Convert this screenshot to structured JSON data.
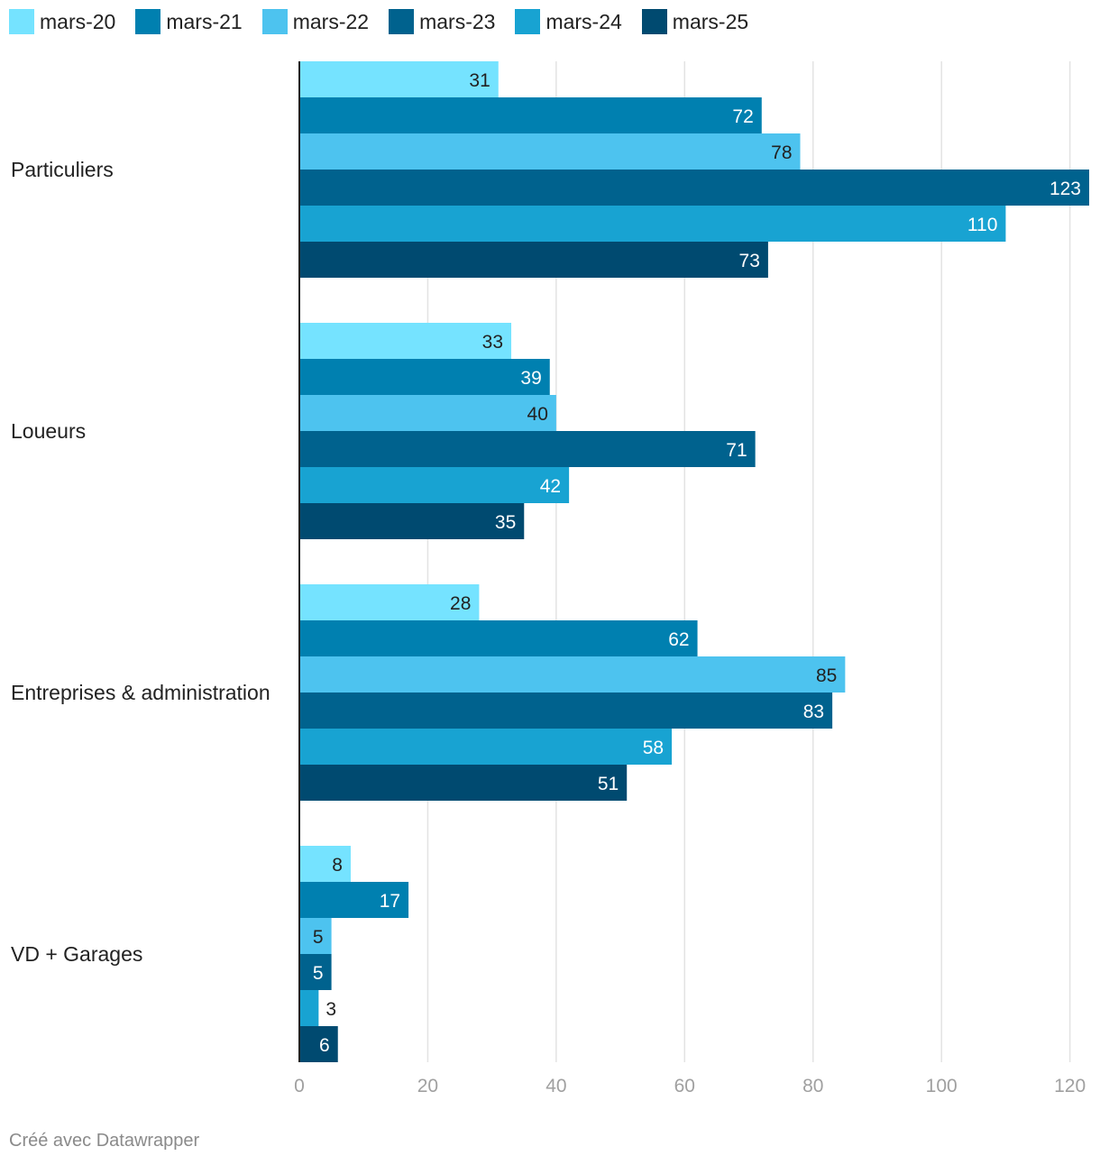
{
  "chart_data": {
    "type": "bar",
    "orientation": "horizontal",
    "categories": [
      "Particuliers",
      "Loueurs",
      "Entreprises & administration",
      "VD + Garages"
    ],
    "series": [
      {
        "name": "mars-20",
        "color": "#75e3ff",
        "values": [
          31,
          33,
          28,
          8
        ]
      },
      {
        "name": "mars-21",
        "color": "#0080b0",
        "values": [
          72,
          39,
          62,
          17
        ]
      },
      {
        "name": "mars-22",
        "color": "#4dc3ef",
        "values": [
          78,
          40,
          85,
          5
        ]
      },
      {
        "name": "mars-23",
        "color": "#00628e",
        "values": [
          123,
          71,
          83,
          5
        ]
      },
      {
        "name": "mars-24",
        "color": "#18a3d2",
        "values": [
          110,
          42,
          58,
          3
        ]
      },
      {
        "name": "mars-25",
        "color": "#004a70",
        "values": [
          73,
          35,
          51,
          6
        ]
      }
    ],
    "xlim": [
      0,
      123
    ],
    "xticks": [
      0,
      20,
      40,
      60,
      80,
      100,
      120
    ],
    "grid": true,
    "legend_position": "top-left",
    "value_labels": true
  },
  "footer": {
    "credit": "Créé avec Datawrapper"
  }
}
